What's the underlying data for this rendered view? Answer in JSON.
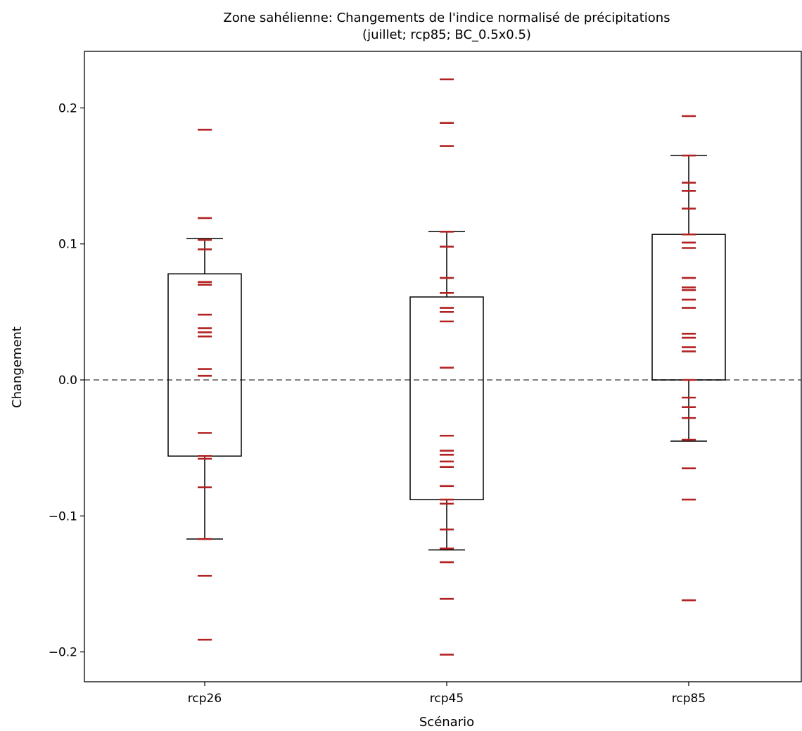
{
  "chart_data": {
    "type": "box",
    "title": "Zone sahélienne: Changements de l'indice normalisé de précipitations",
    "subtitle": "(juillet; rcp85; BC_0.5x0.5)",
    "xlabel": "Scénario",
    "ylabel": "Changement",
    "ylim": [
      -0.223,
      0.242
    ],
    "yticks": [
      0.2,
      0.1,
      0.0,
      -0.1,
      -0.2
    ],
    "ytick_labels": [
      "0.2",
      "0.1",
      "0.0",
      "−0.1",
      "−0.2"
    ],
    "categories": [
      "rcp26",
      "rcp45",
      "rcp85"
    ],
    "grid": false,
    "reference_line": {
      "y": 0.0,
      "style": "dashed",
      "color": "#808080"
    },
    "colors": {
      "box": "#000000",
      "points": "#b22222"
    },
    "boxes": [
      {
        "name": "rcp26",
        "whisker_low": -0.117,
        "q1": -0.056,
        "q3": 0.078,
        "whisker_high": 0.104
      },
      {
        "name": "rcp45",
        "whisker_low": -0.125,
        "q1": -0.088,
        "q3": 0.061,
        "whisker_high": 0.109
      },
      {
        "name": "rcp85",
        "whisker_low": -0.045,
        "q1": 0.0,
        "q3": 0.107,
        "whisker_high": 0.165
      }
    ],
    "points": [
      [
        0.184,
        0.119,
        0.103,
        0.096,
        0.072,
        0.07,
        0.048,
        0.038,
        0.035,
        0.032,
        0.008,
        0.003,
        -0.039,
        -0.056,
        -0.058,
        -0.079,
        -0.117,
        -0.144,
        -0.191
      ],
      [
        0.221,
        0.189,
        0.172,
        0.109,
        0.098,
        0.075,
        0.064,
        0.053,
        0.05,
        0.043,
        0.009,
        -0.041,
        -0.052,
        -0.055,
        -0.06,
        -0.064,
        -0.078,
        -0.088,
        -0.091,
        -0.11,
        -0.124,
        -0.134,
        -0.161,
        -0.202
      ],
      [
        0.194,
        0.165,
        0.145,
        0.139,
        0.126,
        0.107,
        0.101,
        0.097,
        0.075,
        0.068,
        0.066,
        0.059,
        0.053,
        0.034,
        0.031,
        0.024,
        0.021,
        0.0,
        -0.013,
        -0.02,
        -0.028,
        -0.044,
        -0.065,
        -0.088,
        -0.162
      ]
    ]
  }
}
